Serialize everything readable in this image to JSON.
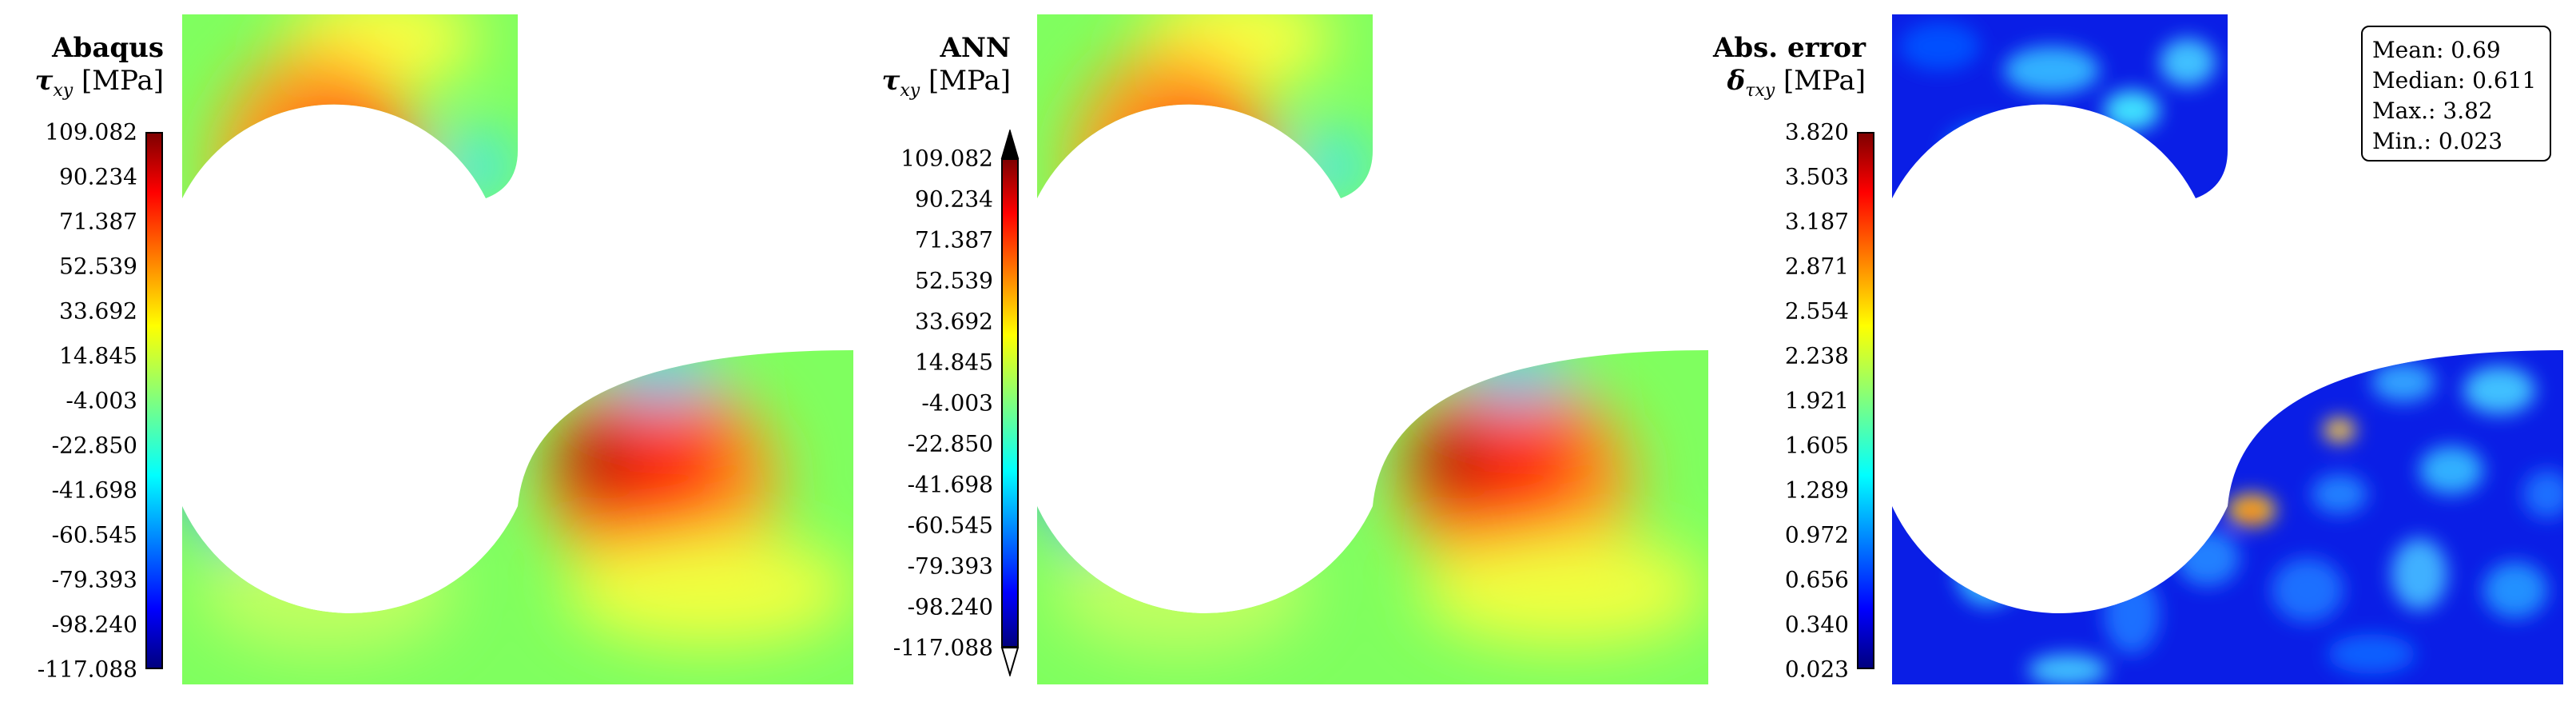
{
  "chart_data": [
    {
      "type": "heatmap",
      "title": "Abaqus",
      "quantity": "τ",
      "subscript": "xy",
      "unit": "[MPa]",
      "colormap": "jet",
      "colorbar_ticks": [
        "109.082",
        "90.234",
        "71.387",
        "52.539",
        "33.692",
        "14.845",
        "-4.003",
        "-22.850",
        "-41.698",
        "-60.545",
        "-79.393",
        "-98.240",
        "-117.088"
      ],
      "range": [
        -117.088,
        109.082
      ]
    },
    {
      "type": "heatmap",
      "title": "ANN",
      "quantity": "τ",
      "subscript": "xy",
      "unit": "[MPa]",
      "colormap": "jet",
      "colorbar_ticks": [
        "109.082",
        "90.234",
        "71.387",
        "52.539",
        "33.692",
        "14.845",
        "-4.003",
        "-22.850",
        "-41.698",
        "-60.545",
        "-79.393",
        "-98.240",
        "-117.088"
      ],
      "range": [
        -117.088,
        109.082
      ],
      "colorbar_extend": "both"
    },
    {
      "type": "heatmap",
      "title": "Abs. error",
      "quantity": "δ",
      "subscript": "τxy",
      "unit": "[MPa]",
      "colormap": "jet",
      "colorbar_ticks": [
        "3.820",
        "3.503",
        "3.187",
        "2.871",
        "2.554",
        "2.238",
        "1.921",
        "1.605",
        "1.289",
        "0.972",
        "0.656",
        "0.340",
        "0.023"
      ],
      "range": [
        0.023,
        3.82
      ],
      "stats": {
        "mean": "Mean: 0.69",
        "median": "Median: 0.611",
        "max": "Max.: 3.82",
        "min": "Min.: 0.023"
      }
    }
  ]
}
